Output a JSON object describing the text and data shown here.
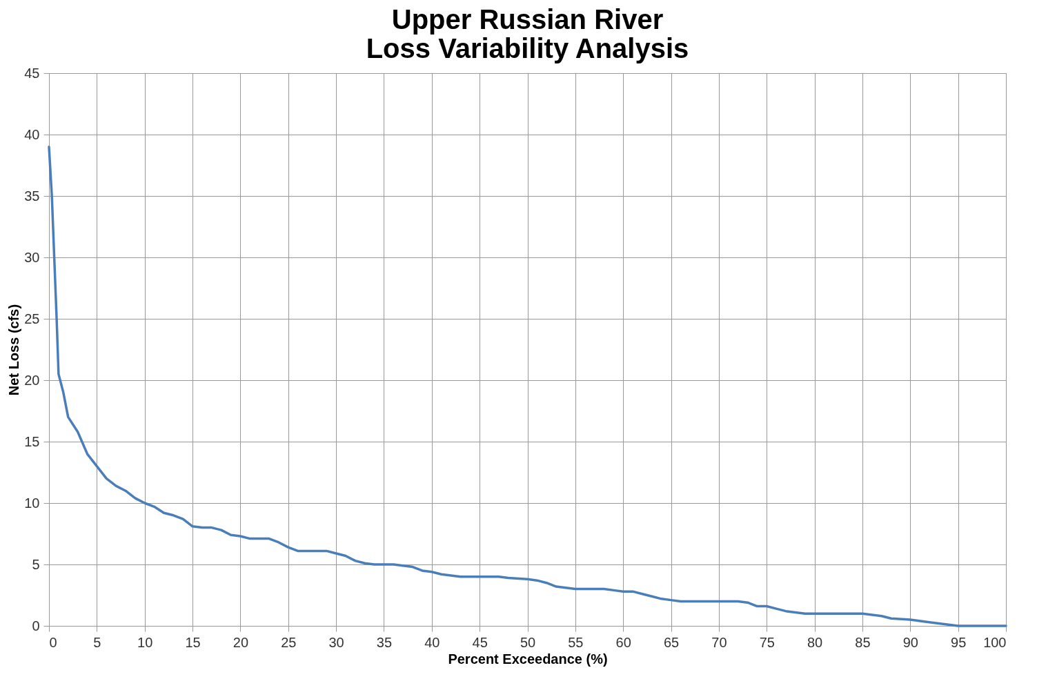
{
  "chart_data": {
    "type": "line",
    "title": [
      "Upper Russian River",
      "Loss Variability Analysis"
    ],
    "xlabel": "Percent Exceedance (%)",
    "ylabel": "Net Loss (cfs)",
    "xlim": [
      0,
      100
    ],
    "xticks": [
      0,
      5,
      10,
      15,
      20,
      25,
      30,
      35,
      40,
      45,
      50,
      55,
      60,
      65,
      70,
      75,
      80,
      85,
      90,
      95,
      100
    ],
    "ylim": [
      0,
      45
    ],
    "yticks": [
      0,
      5,
      10,
      15,
      20,
      25,
      30,
      35,
      40,
      45
    ],
    "grid": true,
    "line_style": "solid",
    "marker": "none",
    "x": [
      0,
      0.3,
      0.8,
      1,
      1.5,
      2,
      3,
      4,
      5,
      6,
      7,
      8,
      9,
      10,
      11,
      12,
      13,
      14,
      15,
      16,
      17,
      18,
      19,
      20,
      21,
      23,
      24,
      25,
      26,
      27,
      29,
      30,
      31,
      32,
      33,
      34,
      36,
      37,
      38,
      39,
      40,
      41,
      42,
      43,
      47,
      48,
      50,
      51,
      52,
      53,
      54,
      55,
      58,
      59,
      60,
      61,
      62,
      63,
      64,
      65,
      66,
      72,
      73,
      74,
      75,
      76,
      77,
      78,
      79,
      84,
      85,
      86,
      87,
      88,
      90,
      92,
      93,
      95,
      100
    ],
    "series": [
      {
        "color": "#4a7ebb",
        "values": [
          39,
          35,
          25,
          20.5,
          19,
          17,
          15.8,
          14,
          13,
          12,
          11.4,
          11,
          10.4,
          10,
          9.7,
          9.2,
          9,
          8.7,
          8.1,
          8,
          8,
          7.8,
          7.4,
          7.3,
          7.1,
          7.1,
          6.8,
          6.4,
          6.1,
          6.1,
          6.1,
          5.9,
          5.7,
          5.3,
          5.1,
          5,
          5,
          4.9,
          4.8,
          4.5,
          4.4,
          4.2,
          4.1,
          4,
          4,
          3.9,
          3.8,
          3.7,
          3.5,
          3.2,
          3.1,
          3,
          3,
          2.9,
          2.8,
          2.8,
          2.6,
          2.4,
          2.2,
          2.1,
          2,
          2,
          1.9,
          1.6,
          1.6,
          1.4,
          1.2,
          1.1,
          1,
          1,
          1,
          0.9,
          0.8,
          0.6,
          0.5,
          0.3,
          0.2,
          0,
          0
        ]
      }
    ]
  }
}
